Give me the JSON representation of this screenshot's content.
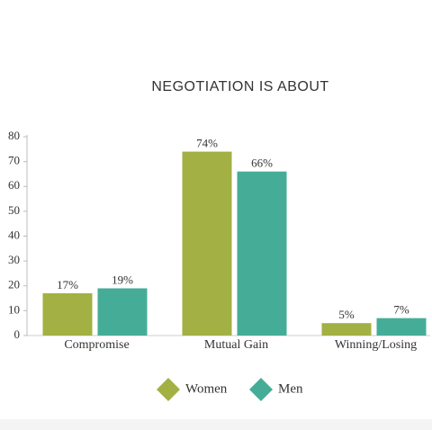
{
  "chart_data": {
    "type": "bar",
    "title": "NEGOTIATION IS ABOUT",
    "categories": [
      "Compromise",
      "Mutual Gain",
      "Winning/Losing"
    ],
    "series": [
      {
        "name": "Women",
        "color": "#a3b043",
        "values": [
          17,
          74,
          5
        ],
        "value_labels": [
          "17%",
          "74%",
          "5%"
        ]
      },
      {
        "name": "Men",
        "color": "#45ad97",
        "values": [
          19,
          66,
          7
        ],
        "value_labels": [
          "19%",
          "66%",
          "7%"
        ]
      }
    ],
    "ylim": [
      0,
      80
    ],
    "yticks": [
      0,
      10,
      20,
      30,
      40,
      50,
      60,
      70,
      80
    ],
    "grid": false
  }
}
